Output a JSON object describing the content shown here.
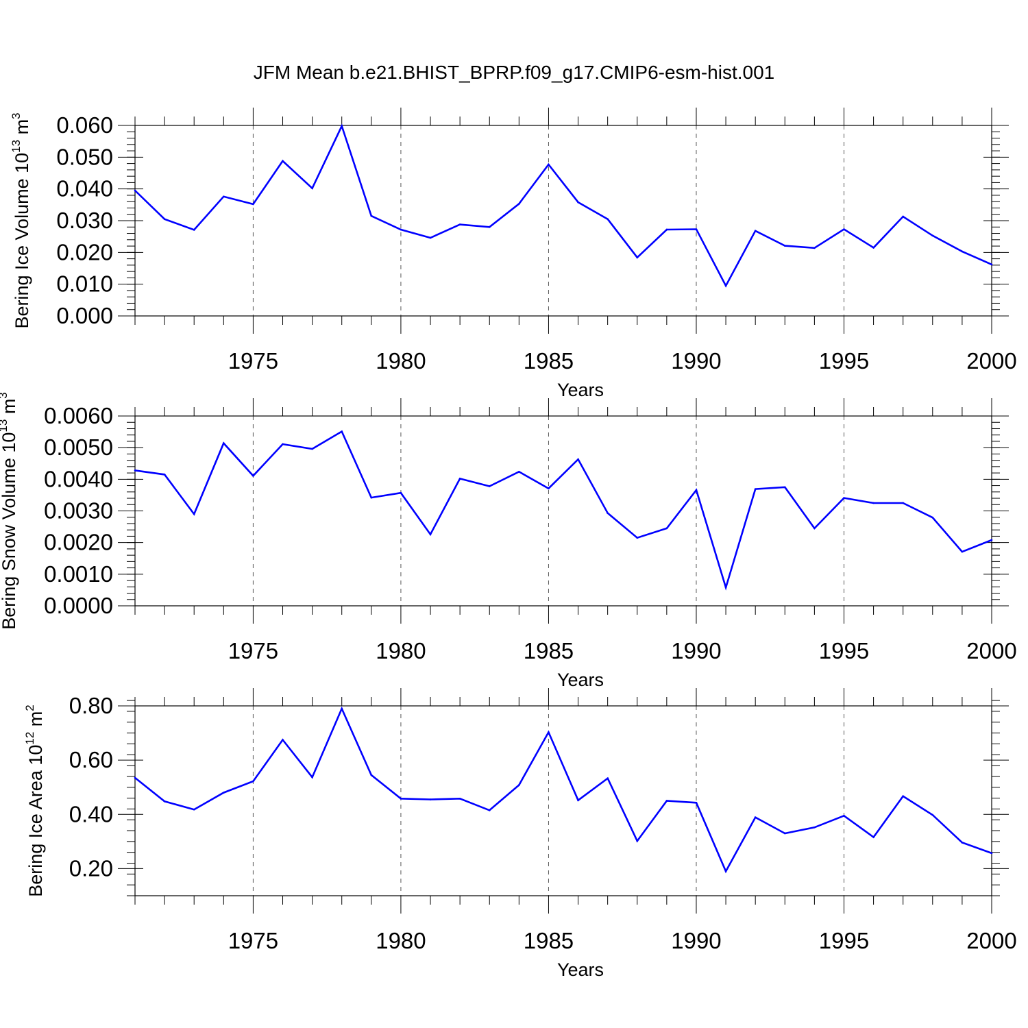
{
  "title": "JFM Mean b.e21.BHIST_BPRP.f09_g17.CMIP6-esm-hist.001",
  "chart_data": [
    {
      "type": "line",
      "ylabel": {
        "text": "Bering Ice Volume 10",
        "sup1": "13",
        "mid": " m",
        "sup2": "3"
      },
      "xlabel": "Years",
      "xlim": [
        1971,
        2000
      ],
      "ylim": [
        0.0,
        0.06
      ],
      "yticks": [
        0.0,
        0.01,
        0.02,
        0.03,
        0.04,
        0.05,
        0.06
      ],
      "ytick_labels": [
        "0.000",
        "0.010",
        "0.020",
        "0.030",
        "0.040",
        "0.050",
        "0.060"
      ],
      "ymaxor": 0.002,
      "xticks": [
        1975,
        1980,
        1985,
        1990,
        1995,
        2000
      ],
      "xtick_labels": [
        "1975",
        "1980",
        "1985",
        "1990",
        "1995",
        "2000"
      ],
      "grid": "vertical dashed at major x ticks",
      "x": [
        1971,
        1972,
        1973,
        1974,
        1975,
        1976,
        1977,
        1978,
        1979,
        1980,
        1981,
        1982,
        1983,
        1984,
        1985,
        1986,
        1987,
        1988,
        1989,
        1990,
        1991,
        1992,
        1993,
        1994,
        1995,
        1996,
        1997,
        1998,
        1999,
        2000
      ],
      "series": [
        {
          "color": "#0000ff",
          "values": [
            0.0395,
            0.0305,
            0.0271,
            0.0376,
            0.0352,
            0.0488,
            0.0402,
            0.0598,
            0.0315,
            0.0272,
            0.0246,
            0.0288,
            0.028,
            0.0353,
            0.0477,
            0.0358,
            0.0305,
            0.0184,
            0.0272,
            0.0273,
            0.0095,
            0.0268,
            0.0221,
            0.0214,
            0.0273,
            0.0215,
            0.0313,
            0.0253,
            0.0203,
            0.0162
          ]
        }
      ]
    },
    {
      "type": "line",
      "ylabel": {
        "text": "Bering Snow Volume 10",
        "sup1": "13",
        "mid": " m",
        "sup2": "3"
      },
      "xlabel": "Years",
      "xlim": [
        1971,
        2000
      ],
      "ylim": [
        0.0,
        0.006
      ],
      "yticks": [
        0.0,
        0.001,
        0.002,
        0.003,
        0.004,
        0.005,
        0.006
      ],
      "ytick_labels": [
        "0.0000",
        "0.0010",
        "0.0020",
        "0.0030",
        "0.0040",
        "0.0050",
        "0.0060"
      ],
      "ymaxor": 0.0002,
      "xticks": [
        1975,
        1980,
        1985,
        1990,
        1995,
        2000
      ],
      "xtick_labels": [
        "1975",
        "1980",
        "1985",
        "1990",
        "1995",
        "2000"
      ],
      "grid": "vertical dashed at major x ticks",
      "x": [
        1971,
        1972,
        1973,
        1974,
        1975,
        1976,
        1977,
        1978,
        1979,
        1980,
        1981,
        1982,
        1983,
        1984,
        1985,
        1986,
        1987,
        1988,
        1989,
        1990,
        1991,
        1992,
        1993,
        1994,
        1995,
        1996,
        1997,
        1998,
        1999,
        2000
      ],
      "series": [
        {
          "color": "#0000ff",
          "values": [
            0.00428,
            0.00415,
            0.0029,
            0.00514,
            0.00411,
            0.00511,
            0.00496,
            0.00551,
            0.00342,
            0.00357,
            0.00226,
            0.00402,
            0.00378,
            0.00424,
            0.00371,
            0.00463,
            0.00293,
            0.00215,
            0.00245,
            0.00366,
            0.00058,
            0.00369,
            0.00375,
            0.00245,
            0.00341,
            0.00325,
            0.00325,
            0.00279,
            0.00171,
            0.00208
          ]
        }
      ]
    },
    {
      "type": "line",
      "ylabel": {
        "text": "Bering Ice Area 10",
        "sup1": "12",
        "mid": " m",
        "sup2": "2"
      },
      "xlabel": "Years",
      "xlim": [
        1971,
        2000
      ],
      "ylim": [
        0.1,
        0.8
      ],
      "yticks": [
        0.2,
        0.4,
        0.6,
        0.8
      ],
      "ytick_labels": [
        "0.20",
        "0.40",
        "0.60",
        "0.80"
      ],
      "ymaxor": 0.04,
      "xticks": [
        1975,
        1980,
        1985,
        1990,
        1995,
        2000
      ],
      "xtick_labels": [
        "1975",
        "1980",
        "1985",
        "1990",
        "1995",
        "2000"
      ],
      "grid": "vertical dashed at major x ticks",
      "x": [
        1971,
        1972,
        1973,
        1974,
        1975,
        1976,
        1977,
        1978,
        1979,
        1980,
        1981,
        1982,
        1983,
        1984,
        1985,
        1986,
        1987,
        1988,
        1989,
        1990,
        1991,
        1992,
        1993,
        1994,
        1995,
        1996,
        1997,
        1998,
        1999,
        2000
      ],
      "series": [
        {
          "color": "#0000ff",
          "values": [
            0.535,
            0.448,
            0.418,
            0.48,
            0.522,
            0.675,
            0.537,
            0.79,
            0.545,
            0.458,
            0.455,
            0.458,
            0.415,
            0.508,
            0.703,
            0.452,
            0.533,
            0.302,
            0.45,
            0.443,
            0.19,
            0.389,
            0.33,
            0.352,
            0.395,
            0.316,
            0.467,
            0.398,
            0.296,
            0.257
          ]
        }
      ]
    }
  ]
}
